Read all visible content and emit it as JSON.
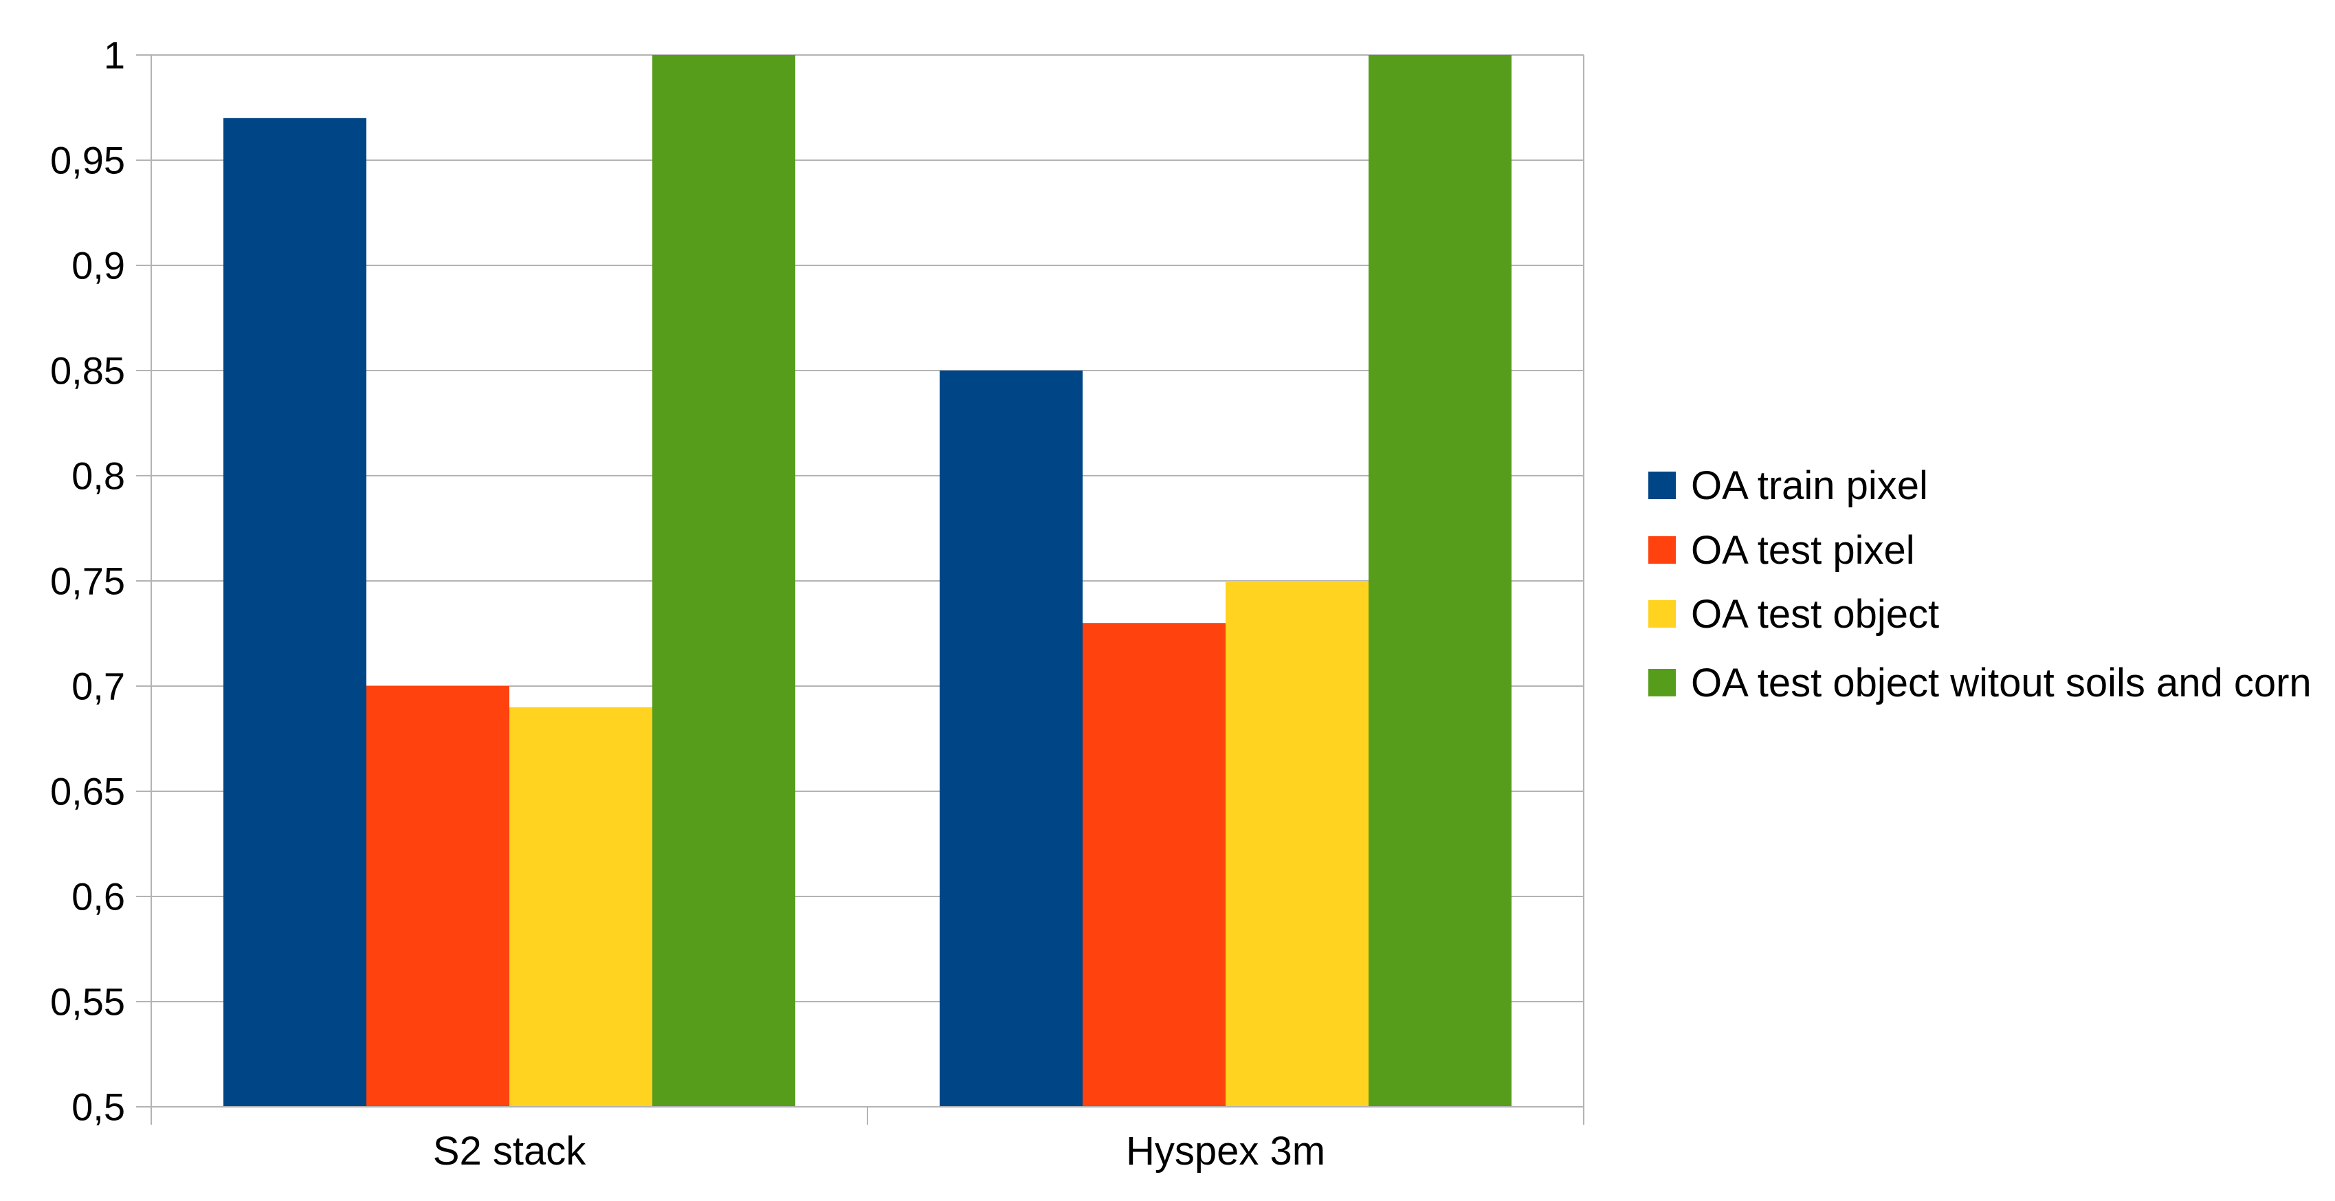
{
  "chart_data": {
    "type": "bar",
    "title": "",
    "xlabel": "",
    "ylabel": "",
    "categories": [
      "S2 stack",
      "Hyspex 3m"
    ],
    "ylim": [
      0.5,
      1
    ],
    "yticks": [
      {
        "value": 0.5,
        "label": "0,5"
      },
      {
        "value": 0.55,
        "label": "0,55"
      },
      {
        "value": 0.6,
        "label": "0,6"
      },
      {
        "value": 0.65,
        "label": "0,65"
      },
      {
        "value": 0.7,
        "label": "0,7"
      },
      {
        "value": 0.75,
        "label": "0,75"
      },
      {
        "value": 0.8,
        "label": "0,8"
      },
      {
        "value": 0.85,
        "label": "0,85"
      },
      {
        "value": 0.9,
        "label": "0,9"
      },
      {
        "value": 0.95,
        "label": "0,95"
      },
      {
        "value": 1,
        "label": "1"
      }
    ],
    "grid": true,
    "legend_position": "right",
    "series": [
      {
        "name": "OA train pixel",
        "color": "#004586",
        "values": [
          0.97,
          0.85
        ]
      },
      {
        "name": "OA test pixel",
        "color": "#ff420e",
        "values": [
          0.7,
          0.73
        ]
      },
      {
        "name": "OA test object",
        "color": "#ffd320",
        "values": [
          0.69,
          0.75
        ]
      },
      {
        "name": "OA test object witout soils and corn",
        "color": "#579d1c",
        "values": [
          1.0,
          1.0
        ]
      }
    ]
  }
}
